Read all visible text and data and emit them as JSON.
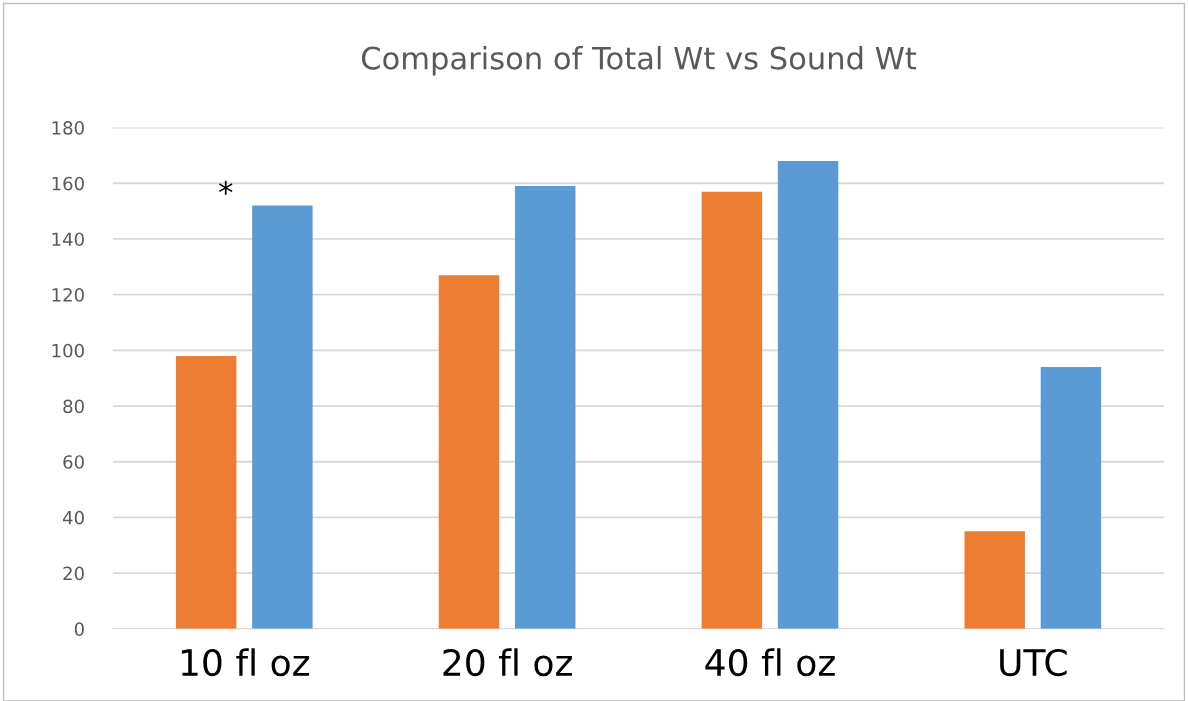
{
  "chart_data": {
    "type": "bar",
    "title": "Comparison of Total Wt vs Sound Wt",
    "categories": [
      "10 fl oz",
      "20 fl oz",
      "40 fl oz",
      "UTC"
    ],
    "series": [
      {
        "color": "#ed7d31",
        "values": [
          98,
          127,
          157,
          35
        ]
      },
      {
        "color": "#5b9bd5",
        "values": [
          152,
          159,
          168,
          94
        ]
      }
    ],
    "ylim": [
      0,
      180
    ],
    "yticks": [
      0,
      20,
      40,
      60,
      80,
      100,
      120,
      140,
      160,
      180
    ],
    "grid": "y",
    "legend": false,
    "annotations": [
      "*"
    ]
  }
}
